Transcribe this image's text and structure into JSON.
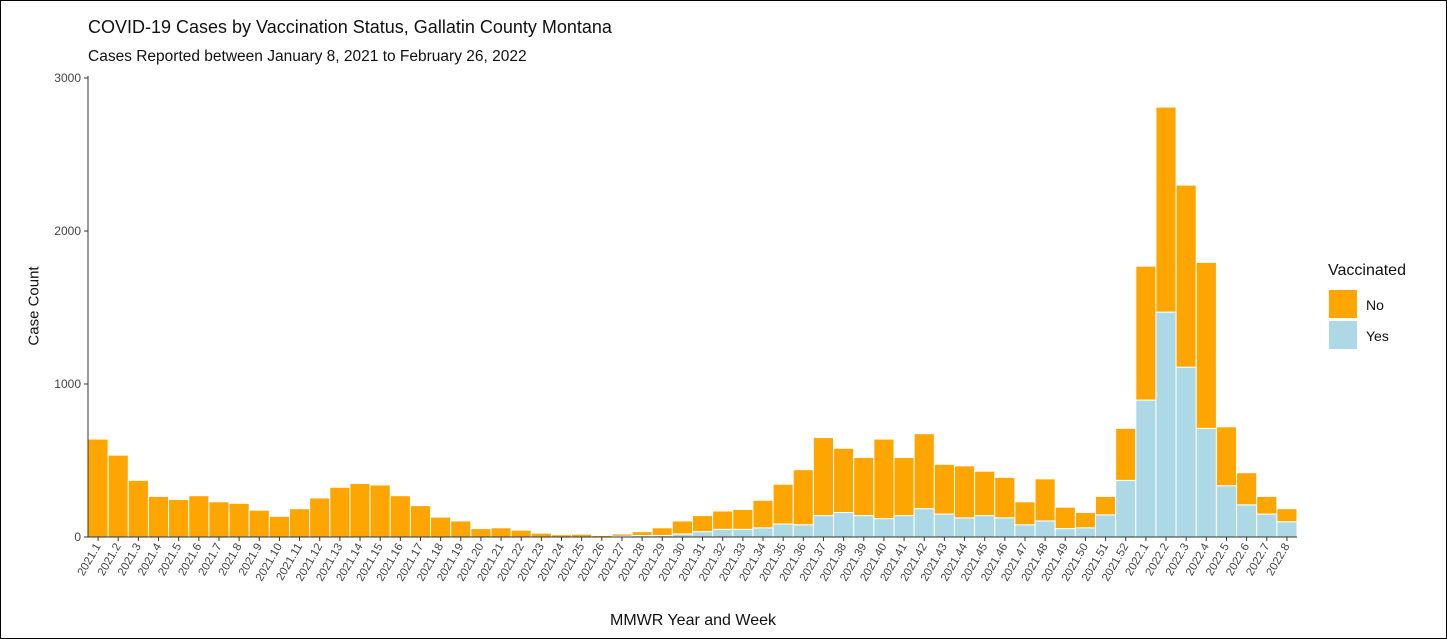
{
  "title": "COVID-19 Cases by Vaccination Status, Gallatin County Montana",
  "subtitle": "Cases Reported between January 8, 2021 to February 26, 2022",
  "chart_data": {
    "type": "bar",
    "stacked": true,
    "title": "COVID-19 Cases by Vaccination Status, Gallatin County Montana",
    "subtitle": "Cases Reported between January 8, 2021 to February 26, 2022",
    "xlabel": "MMWR Year and Week",
    "ylabel": "Case Count",
    "ylim": [
      0,
      3000
    ],
    "yticks": [
      0,
      1000,
      2000,
      3000
    ],
    "legend_title": "Vaccinated",
    "legend_position": "right",
    "categories": [
      "2021.1",
      "2021.2",
      "2021.3",
      "2021.4",
      "2021.5",
      "2021.6",
      "2021.7",
      "2021.8",
      "2021.9",
      "2021.10",
      "2021.11",
      "2021.12",
      "2021.13",
      "2021.14",
      "2021.15",
      "2021.16",
      "2021.17",
      "2021.18",
      "2021.19",
      "2021.20",
      "2021.21",
      "2021.22",
      "2021.23",
      "2021.24",
      "2021.25",
      "2021.26",
      "2021.27",
      "2021.28",
      "2021.29",
      "2021.30",
      "2021.31",
      "2021.32",
      "2021.33",
      "2021.34",
      "2021.35",
      "2021.36",
      "2021.37",
      "2021.38",
      "2021.39",
      "2021.40",
      "2021.41",
      "2021.42",
      "2021.43",
      "2021.44",
      "2021.45",
      "2021.46",
      "2021.47",
      "2021.48",
      "2021.49",
      "2021.50",
      "2021.51",
      "2021.52",
      "2022.1",
      "2022.2",
      "2022.3",
      "2022.4",
      "2022.5",
      "2022.6",
      "2022.7",
      "2022.8"
    ],
    "series": [
      {
        "name": "Yes",
        "color": "#ADD8E6",
        "values": [
          0,
          0,
          0,
          0,
          0,
          0,
          0,
          0,
          0,
          0,
          0,
          0,
          0,
          0,
          0,
          0,
          0,
          0,
          0,
          0,
          0,
          0,
          0,
          0,
          0,
          0,
          5,
          10,
          10,
          20,
          35,
          50,
          50,
          60,
          85,
          80,
          140,
          160,
          140,
          120,
          140,
          185,
          150,
          125,
          140,
          125,
          80,
          105,
          55,
          60,
          145,
          370,
          895,
          1470,
          1110,
          710,
          335,
          210,
          150,
          100
        ]
      },
      {
        "name": "No",
        "color": "#FFA500",
        "values": [
          640,
          535,
          370,
          265,
          245,
          270,
          230,
          220,
          175,
          135,
          185,
          255,
          325,
          350,
          340,
          270,
          205,
          130,
          105,
          55,
          60,
          45,
          25,
          15,
          18,
          10,
          15,
          25,
          50,
          85,
          105,
          120,
          130,
          180,
          260,
          360,
          510,
          420,
          380,
          520,
          380,
          490,
          325,
          340,
          290,
          265,
          150,
          275,
          140,
          100,
          120,
          340,
          875,
          1340,
          1190,
          1085,
          385,
          210,
          115,
          85
        ]
      }
    ]
  }
}
